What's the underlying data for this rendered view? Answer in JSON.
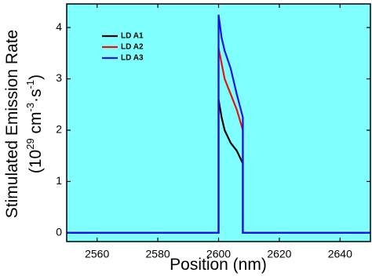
{
  "chart_data": {
    "type": "line",
    "xlabel": "Position (nm)",
    "ylabel": "Stimulated Emission Rate",
    "ylabel_units": [
      "(10",
      "29",
      " cm",
      "-3",
      "·s",
      "-1",
      ")"
    ],
    "x": [
      2550,
      2600,
      2600,
      2601,
      2602,
      2604,
      2606,
      2608,
      2608,
      2650
    ],
    "series": [
      {
        "name": "LD A1",
        "color": "#000000",
        "values": [
          0,
          0,
          2.6,
          2.25,
          2.0,
          1.75,
          1.6,
          1.35,
          0,
          0
        ]
      },
      {
        "name": "LD A2",
        "color": "#e8140a",
        "values": [
          0,
          0,
          3.6,
          3.3,
          3.0,
          2.7,
          2.4,
          2.0,
          0,
          0
        ]
      },
      {
        "name": "LD A3",
        "color": "#1414e6",
        "values": [
          0,
          0,
          4.25,
          3.8,
          3.55,
          3.2,
          2.7,
          2.25,
          0,
          0
        ]
      }
    ],
    "xlim": [
      2550,
      2650
    ],
    "xticks": [
      2560,
      2580,
      2600,
      2620,
      2640
    ],
    "ylim": [
      -0.17,
      4.46
    ],
    "yticks": [
      0,
      1,
      2,
      3,
      4
    ],
    "background": "#80ffff",
    "legend": "upper-left"
  }
}
